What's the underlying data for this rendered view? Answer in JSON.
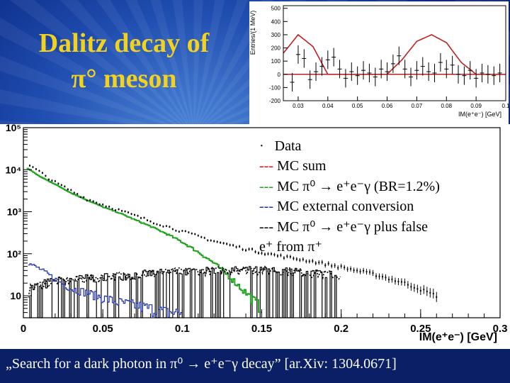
{
  "title": {
    "line1": "Dalitz decay of",
    "line2": "π° meson"
  },
  "legend": {
    "items": [
      {
        "marker": "·",
        "text": "Data",
        "color": "#000000"
      },
      {
        "marker": "---",
        "text": "MC sum",
        "color": "#d81010"
      },
      {
        "marker": "---",
        "text": "MC π⁰ → e⁺e⁻γ (BR=1.2%)",
        "color": "#18a018"
      },
      {
        "marker": "---",
        "text": "MC external conversion",
        "color": "#1a2fb0"
      },
      {
        "marker": "---",
        "text": "MC π⁰ → e⁺e⁻γ plus false",
        "color": "#000000"
      }
    ],
    "continuation": "e⁺ from π⁺"
  },
  "citation": "„Search for a dark photon in π⁰ → e⁺e⁻γ decay” [ar.Xiv: 1304.0671]",
  "chart_data": [
    {
      "type": "line",
      "xlabel": "IM(e⁺e⁻) [GeV]",
      "ylabel": "",
      "xlim": [
        0,
        0.3
      ],
      "ylim": [
        3,
        100000
      ],
      "log_y": true,
      "x_ticks": [
        "0",
        "0.05",
        "0.1",
        "0.15",
        "0.2",
        "0.25",
        "0.3"
      ],
      "y_ticks": [
        "10",
        "10²",
        "10³",
        "10⁴",
        "10⁵"
      ],
      "series": [
        {
          "name": "MC sum",
          "color": "#d81010",
          "x": [
            0.002,
            0.005,
            0.01,
            0.02,
            0.03,
            0.04,
            0.05,
            0.06,
            0.07,
            0.08,
            0.09,
            0.1,
            0.11,
            0.12,
            0.13,
            0.14,
            0.15,
            0.16,
            0.17,
            0.18,
            0.19,
            0.2,
            0.21,
            0.22,
            0.23,
            0.24,
            0.25
          ],
          "y": [
            13000,
            11000,
            8000,
            5000,
            3000,
            2000,
            1500,
            1100,
            800,
            600,
            450,
            340,
            260,
            200,
            160,
            130,
            110,
            90,
            80,
            68,
            58,
            48,
            40,
            33,
            26,
            20,
            15
          ]
        },
        {
          "name": "MC π⁰ → e⁺e⁻γ (BR=1.2%)",
          "color": "#18a018",
          "x": [
            0.002,
            0.005,
            0.01,
            0.02,
            0.03,
            0.04,
            0.05,
            0.06,
            0.07,
            0.08,
            0.09,
            0.1,
            0.11,
            0.12,
            0.13,
            0.14,
            0.15
          ],
          "y": [
            11000,
            9500,
            7000,
            4500,
            2800,
            1900,
            1300,
            950,
            650,
            450,
            300,
            190,
            110,
            60,
            28,
            12,
            5
          ]
        },
        {
          "name": "MC external conversion",
          "color": "#1a2fb0",
          "x": [
            0.003,
            0.01,
            0.02,
            0.03,
            0.04,
            0.05,
            0.06,
            0.07,
            0.08,
            0.09,
            0.1
          ],
          "y": [
            60,
            45,
            25,
            15,
            12,
            9,
            7,
            6,
            5,
            4,
            4
          ]
        },
        {
          "name": "MC π⁰ → e⁺e⁻γ plus false e⁺ from π⁺",
          "color": "#000000",
          "x": [
            0.003,
            0.01,
            0.02,
            0.04,
            0.06,
            0.08,
            0.1,
            0.12,
            0.14,
            0.16,
            0.18,
            0.2
          ],
          "y": [
            14,
            18,
            22,
            26,
            30,
            34,
            38,
            40,
            42,
            40,
            36,
            30
          ]
        },
        {
          "name": "Data",
          "color": "#000000",
          "x": [
            0.005,
            0.02,
            0.04,
            0.06,
            0.08,
            0.1,
            0.12,
            0.14,
            0.16,
            0.18,
            0.2,
            0.22,
            0.24,
            0.26
          ],
          "y": [
            12000,
            5000,
            2000,
            1100,
            600,
            340,
            200,
            130,
            90,
            68,
            48,
            33,
            20,
            10
          ]
        }
      ]
    },
    {
      "type": "line",
      "xlabel": "IM(e⁺e⁻) [GeV]",
      "ylabel": "Entries/(1 MeV)",
      "xlim": [
        0.025,
        0.1
      ],
      "ylim": [
        -200,
        520
      ],
      "x_ticks": [
        "0.03",
        "0.04",
        "0.05",
        "0.06",
        "0.07",
        "0.08",
        "0.09",
        "0.1"
      ],
      "y_ticks": [
        "-200",
        "-100",
        "0",
        "100",
        "200",
        "300",
        "400",
        "500"
      ],
      "series": [
        {
          "name": "",
          "color": "#c02020",
          "x": [
            0.02,
            0.025,
            0.03,
            0.035,
            0.04,
            0.045,
            0.05,
            0.055,
            0.06,
            0.065,
            0.07,
            0.075,
            0.08,
            0.085,
            0.09,
            0.095,
            0.1
          ],
          "y": [
            0,
            160,
            300,
            210,
            0,
            0,
            0,
            0,
            0,
            110,
            250,
            300,
            240,
            90,
            0,
            0,
            0
          ]
        },
        {
          "name": "",
          "color": "#000000",
          "x": [
            0.028,
            0.03,
            0.032,
            0.034,
            0.036,
            0.038,
            0.04,
            0.042,
            0.044,
            0.046,
            0.048,
            0.05,
            0.052,
            0.054,
            0.056,
            0.058,
            0.06,
            0.062,
            0.064,
            0.066,
            0.068,
            0.07,
            0.072,
            0.074,
            0.076,
            0.078,
            0.08,
            0.082,
            0.084,
            0.086,
            0.088,
            0.09,
            0.092,
            0.094,
            0.096,
            0.098
          ],
          "y": [
            -60,
            150,
            120,
            -40,
            20,
            60,
            110,
            130,
            40,
            -30,
            20,
            -10,
            30,
            10,
            -20,
            40,
            20,
            80,
            140,
            40,
            -20,
            30,
            60,
            20,
            10,
            90,
            40,
            70,
            0,
            -10,
            30,
            -30,
            10,
            0,
            -10,
            10
          ]
        }
      ]
    }
  ]
}
